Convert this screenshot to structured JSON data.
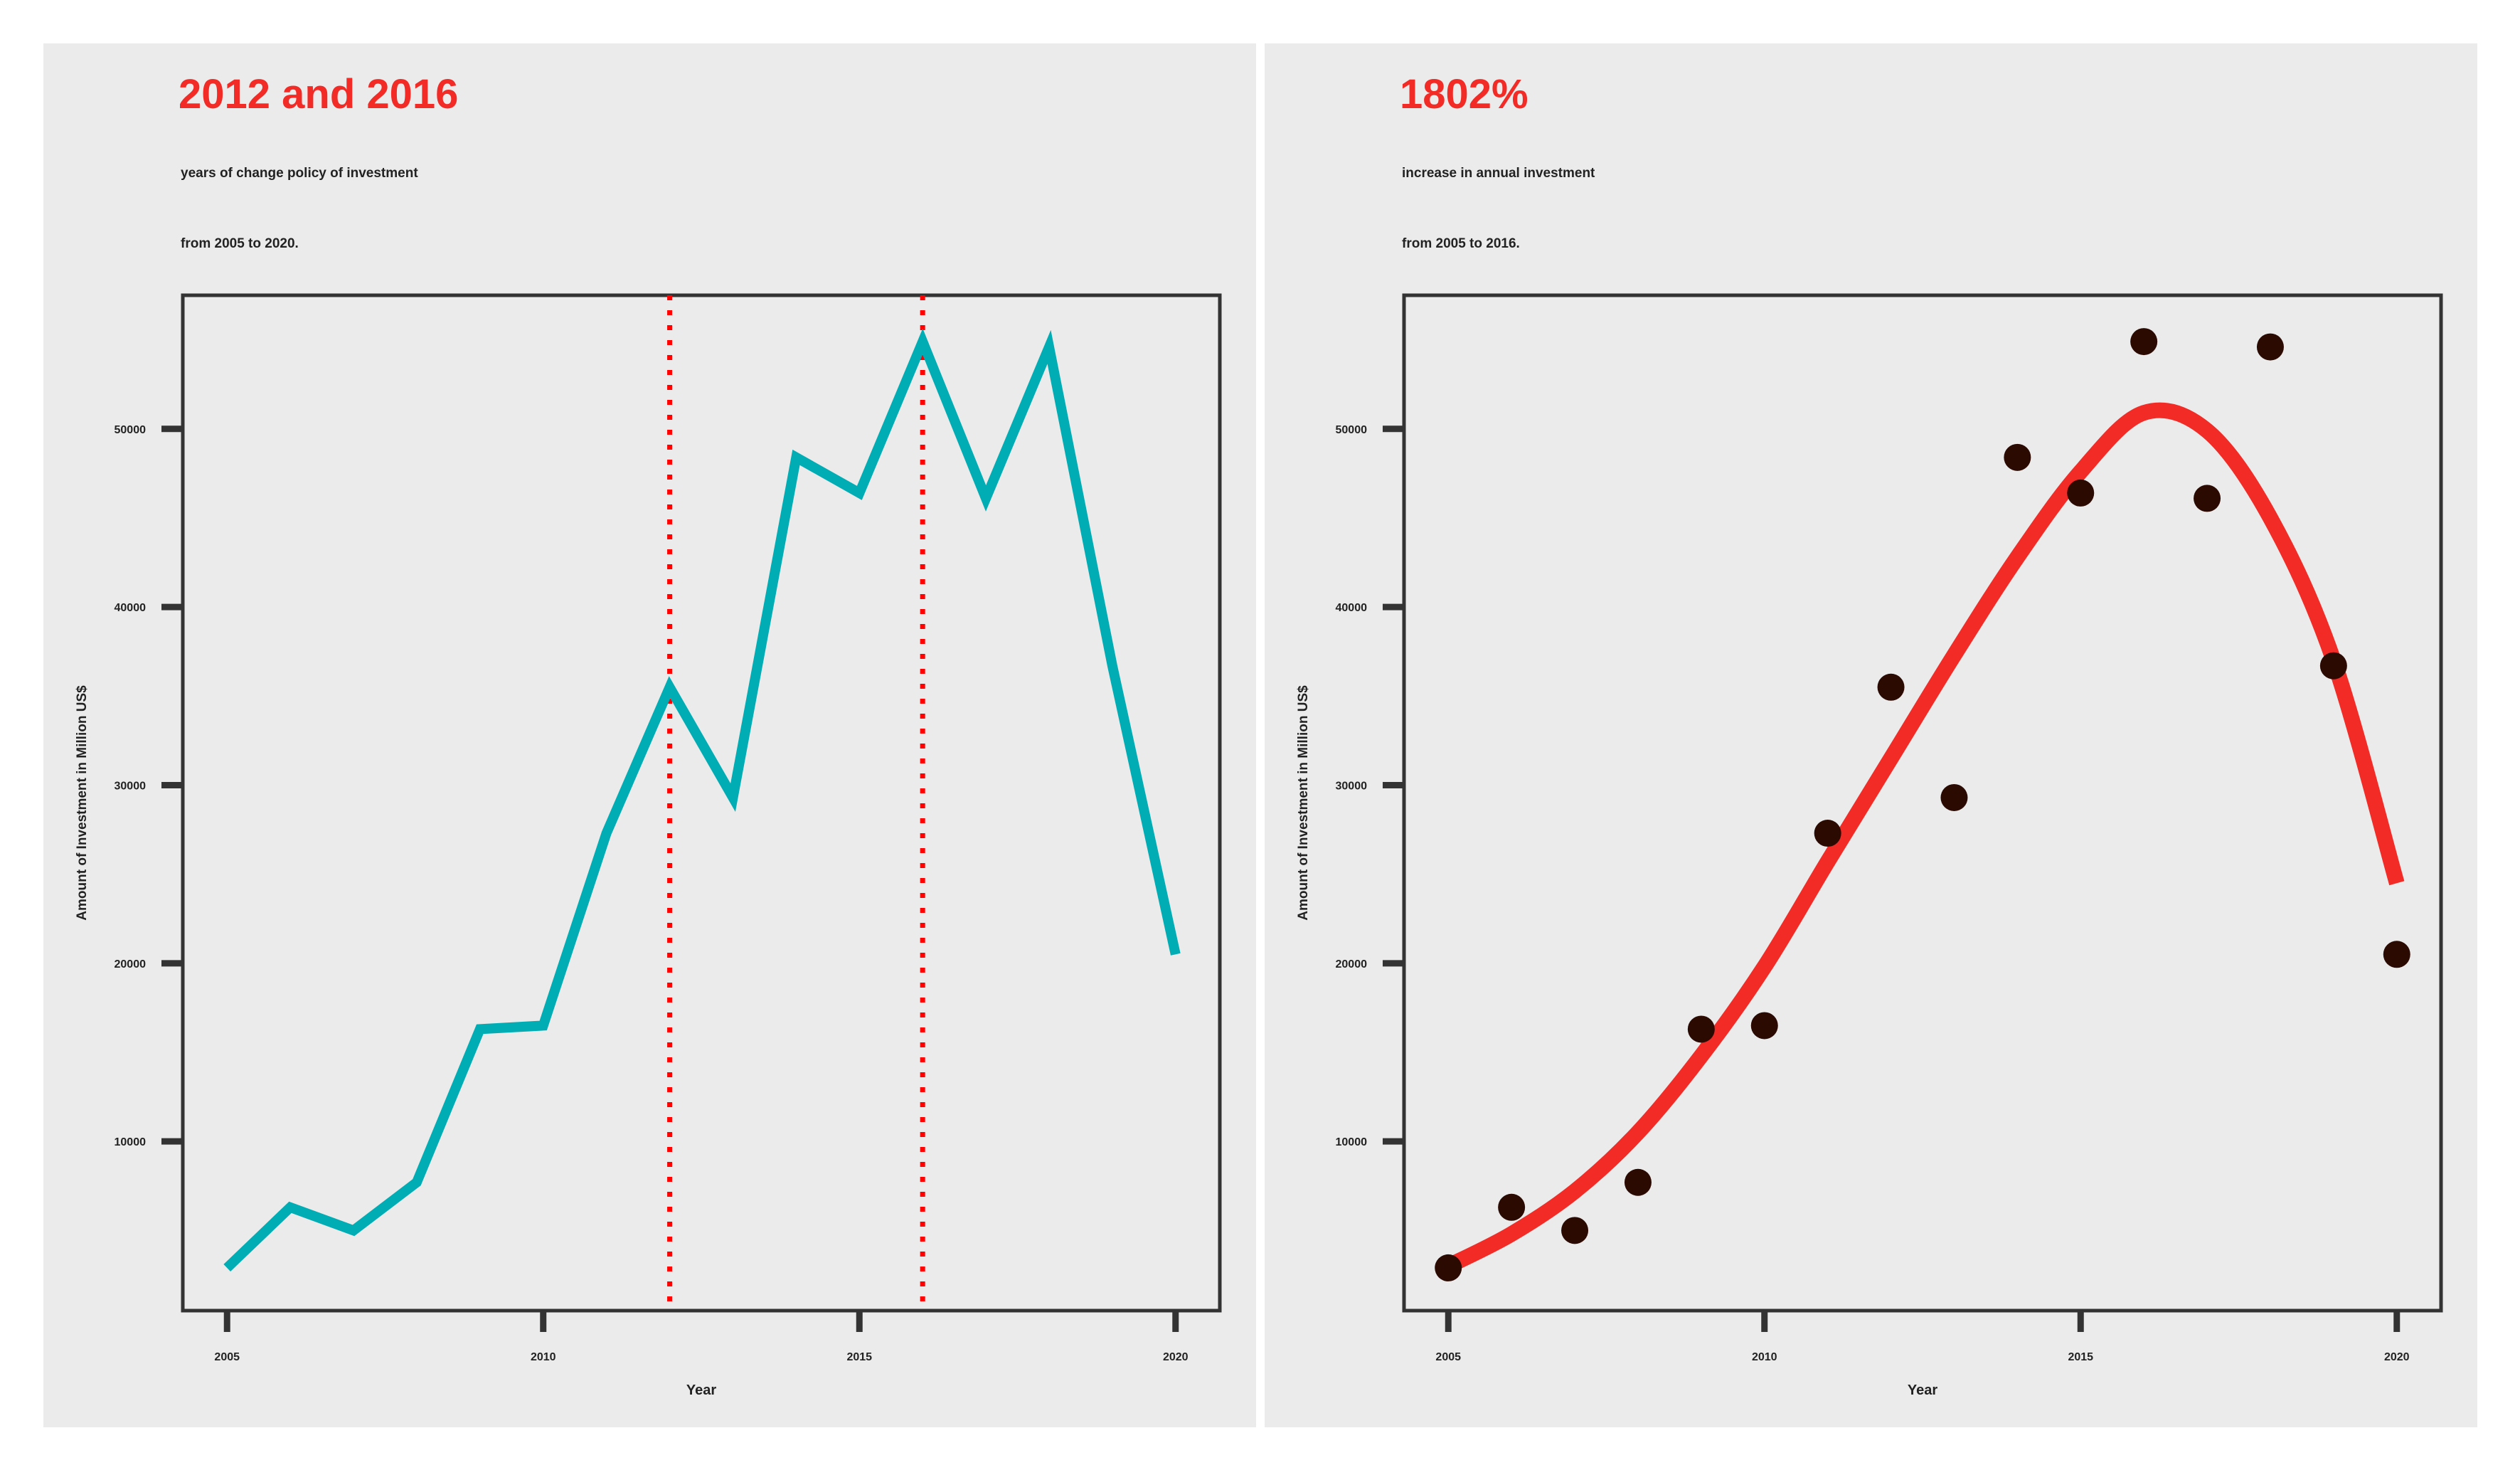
{
  "left": {
    "headline": "2012 and 2016",
    "subtitle_line1": "years of change policy of investment",
    "subtitle_line2": "from 2005 to 2020."
  },
  "right": {
    "headline": "1802%",
    "subtitle_line1": "increase in annual investment",
    "subtitle_line2": "from 2005 to 2016."
  },
  "colors": {
    "headline": "#f22b27",
    "line": "#00adb5",
    "vline": "#ff0000",
    "points": "#2b0a02",
    "smooth": "#f22b27",
    "panel_bg": "#ebebeb"
  },
  "chart_data": [
    {
      "type": "line",
      "xlabel": "Year",
      "ylabel": "Amount of Investment in Million US$",
      "x_ticks": [
        2005,
        2010,
        2015,
        2020
      ],
      "y_ticks": [
        10000,
        20000,
        30000,
        40000,
        50000
      ],
      "xlim": [
        2004.3,
        2020.7
      ],
      "ylim": [
        500,
        57500
      ],
      "grid": false,
      "x": [
        2005,
        2006,
        2007,
        2008,
        2009,
        2010,
        2011,
        2012,
        2013,
        2014,
        2015,
        2016,
        2017,
        2018,
        2019,
        2020
      ],
      "series": [
        {
          "values": [
            2900,
            6300,
            5000,
            7700,
            16300,
            16500,
            27300,
            35500,
            29300,
            48400,
            46400,
            54900,
            46100,
            54600,
            36700,
            20500
          ]
        }
      ],
      "vlines": [
        2012,
        2016
      ]
    },
    {
      "type": "scatter",
      "xlabel": "Year",
      "ylabel": "Amount of Investment in Million US$",
      "x_ticks": [
        2005,
        2010,
        2015,
        2020
      ],
      "y_ticks": [
        10000,
        20000,
        30000,
        40000,
        50000
      ],
      "xlim": [
        2004.3,
        2020.7
      ],
      "ylim": [
        500,
        57500
      ],
      "grid": false,
      "x": [
        2005,
        2006,
        2007,
        2008,
        2009,
        2010,
        2011,
        2012,
        2013,
        2014,
        2015,
        2016,
        2017,
        2018,
        2019,
        2020
      ],
      "series": [
        {
          "values": [
            2900,
            6300,
            5000,
            7700,
            16300,
            16500,
            27300,
            35500,
            29300,
            48400,
            46400,
            54900,
            46100,
            54600,
            36700,
            20500
          ]
        }
      ],
      "trend": {
        "x": [
          2005,
          2006,
          2007,
          2008,
          2009,
          2010,
          2011,
          2012,
          2013,
          2014,
          2015,
          2016,
          2017,
          2018,
          2019,
          2020
        ],
        "values": [
          3000,
          4800,
          7200,
          10500,
          14800,
          19800,
          25700,
          31500,
          37300,
          42800,
          47600,
          50900,
          49900,
          45000,
          37000,
          24500
        ]
      }
    }
  ]
}
